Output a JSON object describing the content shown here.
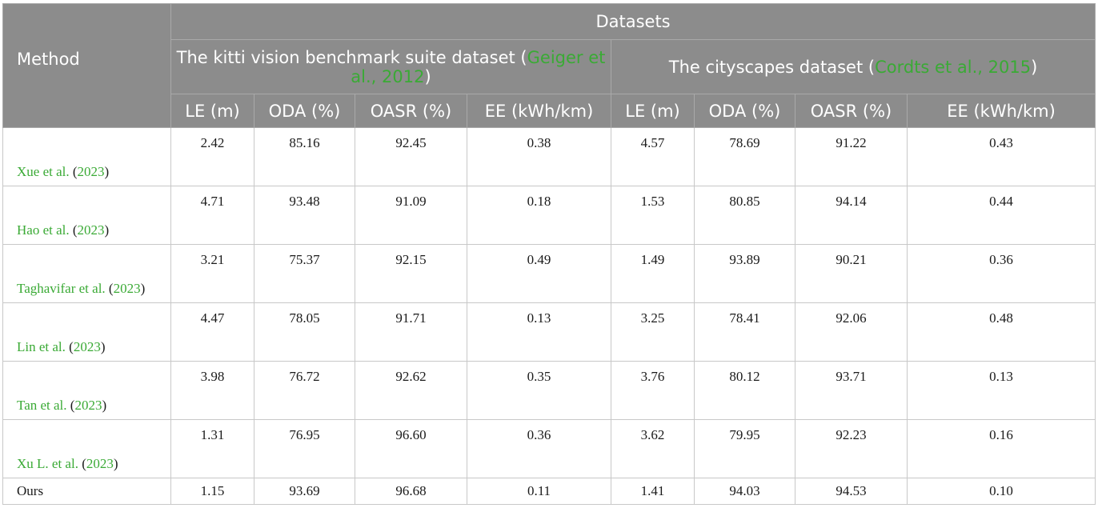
{
  "header": {
    "method": "Method",
    "datasets": "Datasets",
    "kitti": {
      "name": "The kitti vision benchmark suite dataset",
      "open": "(",
      "cite": "Geiger et al., 2012",
      "close": ")"
    },
    "cityscapes": {
      "name": "The cityscapes dataset",
      "open": "(",
      "cite": "Cordts et al., 2015",
      "close": ")"
    },
    "metrics": [
      "LE (m)",
      "ODA (%)",
      "OASR (%)",
      "EE (kWh/km)"
    ]
  },
  "rows": [
    {
      "author": "Xue et al.",
      "year": "2023",
      "values": [
        "2.42",
        "85.16",
        "92.45",
        "0.38",
        "4.57",
        "78.69",
        "91.22",
        "0.43"
      ]
    },
    {
      "author": "Hao et al.",
      "year": "2023",
      "values": [
        "4.71",
        "93.48",
        "91.09",
        "0.18",
        "1.53",
        "80.85",
        "94.14",
        "0.44"
      ]
    },
    {
      "author": "Taghavifar et al.",
      "year": "2023",
      "values": [
        "3.21",
        "75.37",
        "92.15",
        "0.49",
        "1.49",
        "93.89",
        "90.21",
        "0.36"
      ]
    },
    {
      "author": "Lin et al.",
      "year": "2023",
      "values": [
        "4.47",
        "78.05",
        "91.71",
        "0.13",
        "3.25",
        "78.41",
        "92.06",
        "0.48"
      ]
    },
    {
      "author": "Tan et al.",
      "year": "2023",
      "values": [
        "3.98",
        "76.72",
        "92.62",
        "0.35",
        "3.76",
        "80.12",
        "93.71",
        "0.13"
      ]
    },
    {
      "author": "Xu L. et al.",
      "year": "2023",
      "values": [
        "1.31",
        "76.95",
        "96.60",
        "0.36",
        "3.62",
        "79.95",
        "92.23",
        "0.16"
      ]
    }
  ],
  "ours": {
    "label": "Ours",
    "values": [
      "1.15",
      "93.69",
      "96.68",
      "0.11",
      "1.41",
      "94.03",
      "94.53",
      "0.10"
    ]
  },
  "colors": {
    "header_bg": "#8c8c8c",
    "citation": "#3aaa35",
    "border": "#c8c8c8"
  }
}
